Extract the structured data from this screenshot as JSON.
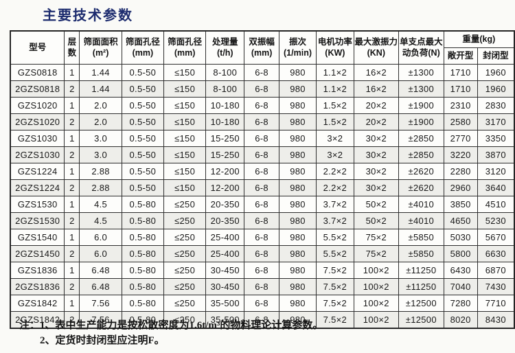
{
  "page": {
    "title": "主要技术参数"
  },
  "table": {
    "header": {
      "col_headers": [
        {
          "line1": "型号",
          "line2": ""
        },
        {
          "line1": "层",
          "line2": "数"
        },
        {
          "line1": "筛面面积",
          "line2": "(m²)"
        },
        {
          "line1": "筛面孔径",
          "line2": "(mm)"
        },
        {
          "line1": "筛面孔径",
          "line2": "(mm)"
        },
        {
          "line1": "处理量",
          "line2": "(t/h)"
        },
        {
          "line1": "双振幅",
          "line2": "(mm)"
        },
        {
          "line1": "振次",
          "line2": "(1/min)"
        },
        {
          "line1": "电机功率",
          "line2": "(KW)"
        },
        {
          "line1": "最大激振力",
          "line2": "(KN)"
        },
        {
          "line1": "单支点最大",
          "line2": "动负荷(N)"
        }
      ],
      "weight_group": {
        "label": "重量(kg)",
        "sub": [
          "敞开型",
          "封闭型"
        ]
      }
    },
    "rows": [
      [
        "GZS0818",
        "1",
        "1.44",
        "0.5-50",
        "≤150",
        "8-100",
        "6-8",
        "980",
        "1.1×2",
        "16×2",
        "±1300",
        "1710",
        "1960"
      ],
      [
        "2GZS0818",
        "2",
        "1.44",
        "0.5-50",
        "≤150",
        "8-100",
        "6-8",
        "980",
        "1.1×2",
        "16×2",
        "±1300",
        "1710",
        "1960"
      ],
      [
        "GZS1020",
        "1",
        "2.0",
        "0.5-50",
        "≤150",
        "10-180",
        "6-8",
        "980",
        "1.5×2",
        "20×2",
        "±1900",
        "2310",
        "2830"
      ],
      [
        "2GZS1020",
        "2",
        "2.0",
        "0.5-50",
        "≤150",
        "10-180",
        "6-8",
        "980",
        "1.5×2",
        "20×2",
        "±1900",
        "2580",
        "3170"
      ],
      [
        "GZS1030",
        "1",
        "3.0",
        "0.5-50",
        "≤150",
        "15-250",
        "6-8",
        "980",
        "3×2",
        "30×2",
        "±2850",
        "2770",
        "3350"
      ],
      [
        "2GZS1030",
        "2",
        "3.0",
        "0.5-50",
        "≤150",
        "15-250",
        "6-8",
        "980",
        "3×2",
        "30×2",
        "±2850",
        "3220",
        "3870"
      ],
      [
        "GZS1224",
        "1",
        "2.88",
        "0.5-50",
        "≤150",
        "12-200",
        "6-8",
        "980",
        "2.2×2",
        "30×2",
        "±2620",
        "2280",
        "3120"
      ],
      [
        "2GZS1224",
        "2",
        "2.88",
        "0.5-50",
        "≤150",
        "12-200",
        "6-8",
        "980",
        "2.2×2",
        "30×2",
        "±2620",
        "2960",
        "3640"
      ],
      [
        "GZS1530",
        "1",
        "4.5",
        "0.5-80",
        "≤250",
        "20-350",
        "6-8",
        "980",
        "3.7×2",
        "50×2",
        "±4010",
        "3850",
        "4510"
      ],
      [
        "2GZS1530",
        "2",
        "4.5",
        "0.5-80",
        "≤250",
        "20-350",
        "6-8",
        "980",
        "3.7×2",
        "50×2",
        "±4010",
        "4650",
        "5230"
      ],
      [
        "GZS1540",
        "1",
        "6.0",
        "0.5-80",
        "≤250",
        "25-400",
        "6-8",
        "980",
        "5.5×2",
        "75×2",
        "±5850",
        "5030",
        "5670"
      ],
      [
        "2GZS1450",
        "2",
        "6.0",
        "0.5-80",
        "≤250",
        "25-400",
        "6-8",
        "980",
        "5.5×2",
        "75×2",
        "±5850",
        "5800",
        "6630"
      ],
      [
        "GZS1836",
        "1",
        "6.48",
        "0.5-80",
        "≤250",
        "30-450",
        "6-8",
        "980",
        "7.5×2",
        "100×2",
        "±11250",
        "6430",
        "6870"
      ],
      [
        "2GZS1836",
        "2",
        "6.48",
        "0.5-80",
        "≤250",
        "30-450",
        "6-8",
        "980",
        "7.5×2",
        "100×2",
        "±11250",
        "7040",
        "7430"
      ],
      [
        "GZS1842",
        "1",
        "7.56",
        "0.5-80",
        "≤250",
        "35-500",
        "6-8",
        "980",
        "7.5×2",
        "100×2",
        "±12500",
        "7280",
        "7710"
      ],
      [
        "2GZS1842",
        "2",
        "7.56",
        "0.5-80",
        "≤250",
        "35-500",
        "6-8",
        "980",
        "7.5×2",
        "100×2",
        "±12500",
        "8020",
        "8430"
      ]
    ]
  },
  "notes": {
    "label": "注：",
    "items": [
      "1、表中生产能力是按松散密度为1.6t/m³的物料理论计算参数。",
      "2、定货时封闭型应注明F。"
    ]
  }
}
